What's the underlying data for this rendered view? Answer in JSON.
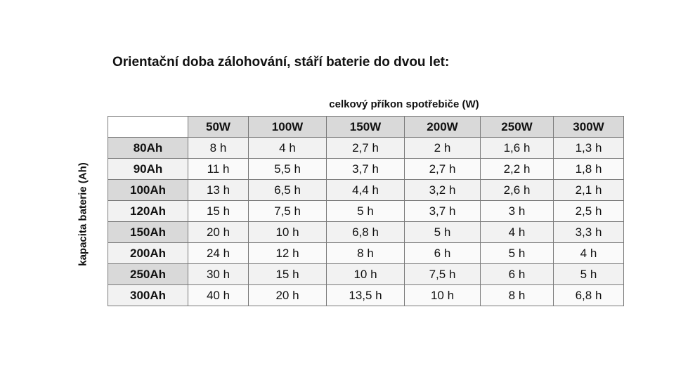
{
  "title": "Orientační doba zálohování, stáří baterie do dvou let:",
  "column_caption": "celkový příkon spotřebiče (W)",
  "row_caption": "kapacita baterie (Ah)",
  "columns": [
    "50W",
    "100W",
    "150W",
    "200W",
    "250W",
    "300W"
  ],
  "rows": [
    {
      "label": "80Ah",
      "values": [
        "8 h",
        "4 h",
        "2,7 h",
        "2 h",
        "1,6 h",
        "1,3 h"
      ]
    },
    {
      "label": "90Ah",
      "values": [
        "11 h",
        "5,5 h",
        "3,7 h",
        "2,7 h",
        "2,2 h",
        "1,8 h"
      ]
    },
    {
      "label": "100Ah",
      "values": [
        "13 h",
        "6,5 h",
        "4,4 h",
        "3,2 h",
        "2,6 h",
        "2,1 h"
      ]
    },
    {
      "label": "120Ah",
      "values": [
        "15 h",
        "7,5 h",
        "5 h",
        "3,7 h",
        "3 h",
        "2,5 h"
      ]
    },
    {
      "label": "150Ah",
      "values": [
        "20 h",
        "10 h",
        "6,8 h",
        "5 h",
        "4 h",
        "3,3 h"
      ]
    },
    {
      "label": "200Ah",
      "values": [
        "24 h",
        "12 h",
        "8 h",
        "6 h",
        "5 h",
        "4 h"
      ]
    },
    {
      "label": "250Ah",
      "values": [
        "30 h",
        "15 h",
        "10 h",
        "7,5 h",
        "6 h",
        "5 h"
      ]
    },
    {
      "label": "300Ah",
      "values": [
        "40 h",
        "20 h",
        "13,5 h",
        "10 h",
        "8 h",
        "6,8 h"
      ]
    }
  ],
  "colors": {
    "header": "#d9d9d9",
    "row_shade": "#f2f2f2",
    "border": "#7a7a7a"
  }
}
